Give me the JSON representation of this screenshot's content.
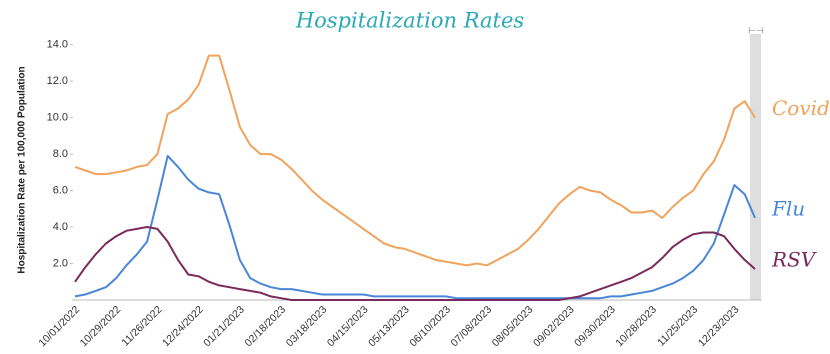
{
  "chart_data": {
    "type": "line",
    "title": "Hospitalization Rates",
    "y_label": "Hospitalization Rate per 100,000 Population",
    "categories": [
      "10/01/2022",
      null,
      null,
      null,
      "10/29/2022",
      null,
      null,
      null,
      "11/26/2022",
      null,
      null,
      null,
      "12/24/2022",
      null,
      null,
      null,
      "01/21/2023",
      null,
      null,
      null,
      "02/18/2023",
      null,
      null,
      null,
      "03/18/2023",
      null,
      null,
      null,
      "04/15/2023",
      null,
      null,
      null,
      "05/13/2023",
      null,
      null,
      null,
      "06/10/2023",
      null,
      null,
      null,
      "07/08/2023",
      null,
      null,
      null,
      "08/05/2023",
      null,
      null,
      null,
      "09/02/2023",
      null,
      null,
      null,
      "09/30/2023",
      null,
      null,
      null,
      "10/28/2023",
      null,
      null,
      null,
      "11/25/2023",
      null,
      null,
      null,
      "12/23/2023",
      null,
      null
    ],
    "series": [
      {
        "name": "Covid",
        "color": "#f0a35a",
        "values": [
          7.3,
          7.1,
          6.9,
          6.9,
          7.0,
          7.1,
          7.3,
          7.4,
          8.0,
          10.2,
          10.5,
          11.0,
          11.8,
          13.4,
          13.4,
          11.5,
          9.5,
          8.5,
          8.0,
          8.0,
          7.7,
          7.2,
          6.6,
          6.0,
          5.5,
          5.1,
          4.7,
          4.3,
          3.9,
          3.5,
          3.1,
          2.9,
          2.8,
          2.6,
          2.4,
          2.2,
          2.1,
          2.0,
          1.9,
          2.0,
          1.9,
          2.2,
          2.5,
          2.8,
          3.3,
          3.9,
          4.6,
          5.3,
          5.8,
          6.2,
          6.0,
          5.9,
          5.5,
          5.2,
          4.8,
          4.8,
          4.9,
          4.5,
          5.1,
          5.6,
          6.0,
          6.9,
          7.6,
          8.8,
          10.5,
          10.9,
          10.0
        ]
      },
      {
        "name": "Flu",
        "color": "#4a86d8",
        "values": [
          0.2,
          0.3,
          0.5,
          0.7,
          1.2,
          1.9,
          2.5,
          3.2,
          5.5,
          7.9,
          7.3,
          6.6,
          6.1,
          5.9,
          5.8,
          4.1,
          2.2,
          1.2,
          0.9,
          0.7,
          0.6,
          0.6,
          0.5,
          0.4,
          0.3,
          0.3,
          0.3,
          0.3,
          0.3,
          0.2,
          0.2,
          0.2,
          0.2,
          0.2,
          0.2,
          0.2,
          0.2,
          0.1,
          0.1,
          0.1,
          0.1,
          0.1,
          0.1,
          0.1,
          0.1,
          0.1,
          0.1,
          0.1,
          0.1,
          0.1,
          0.1,
          0.1,
          0.2,
          0.2,
          0.3,
          0.4,
          0.5,
          0.7,
          0.9,
          1.2,
          1.6,
          2.2,
          3.1,
          4.7,
          6.3,
          5.8,
          4.5
        ]
      },
      {
        "name": "RSV",
        "color": "#7a2a5a",
        "values": [
          1.0,
          1.8,
          2.5,
          3.1,
          3.5,
          3.8,
          3.9,
          4.0,
          3.9,
          3.2,
          2.2,
          1.4,
          1.3,
          1.0,
          0.8,
          0.7,
          0.6,
          0.5,
          0.4,
          0.2,
          0.1,
          0,
          0,
          0,
          0,
          0,
          0,
          0,
          0,
          0,
          0,
          0,
          0,
          0,
          0,
          0,
          0,
          0,
          0,
          0,
          0,
          0,
          0,
          0,
          0,
          0,
          0,
          0,
          0.1,
          0.2,
          0.4,
          0.6,
          0.8,
          1.0,
          1.2,
          1.5,
          1.8,
          2.3,
          2.9,
          3.3,
          3.6,
          3.7,
          3.7,
          3.5,
          2.8,
          2.2,
          1.7
        ]
      }
    ],
    "ylim": [
      0,
      14.2
    ],
    "yticks": [
      {
        "value": 2,
        "label": "2.0"
      },
      {
        "value": 4,
        "label": "4.0"
      },
      {
        "value": 6,
        "label": "6.0"
      },
      {
        "value": 8,
        "label": "8.0"
      },
      {
        "value": 10,
        "label": "10.0"
      },
      {
        "value": 12,
        "label": "12.0"
      },
      {
        "value": 14,
        "label": "14.0"
      }
    ],
    "grid": false
  }
}
